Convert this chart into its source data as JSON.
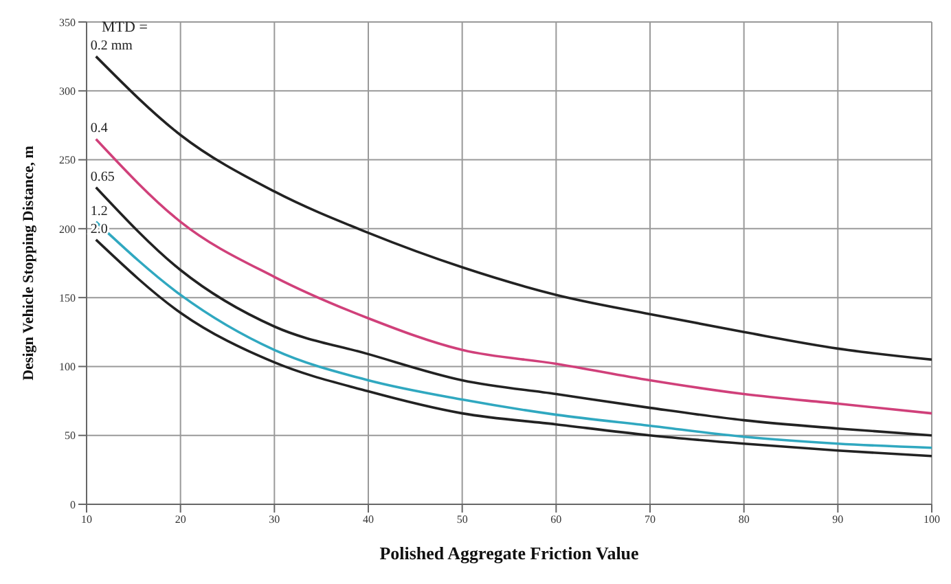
{
  "chart_data": {
    "type": "line",
    "xlabel": "Polished Aggregate Friction Value",
    "ylabel": "Design Vehicle Stopping Distance, m",
    "x": [
      11,
      20,
      30,
      40,
      50,
      60,
      70,
      80,
      90,
      100
    ],
    "series": [
      {
        "name": "0.2 mm",
        "color": "#222222",
        "values": [
          325,
          268,
          227,
          197,
          172,
          152,
          138,
          125,
          113,
          105
        ]
      },
      {
        "name": "0.4",
        "color": "#d0407a",
        "values": [
          265,
          205,
          165,
          135,
          112,
          102,
          90,
          80,
          73,
          66
        ]
      },
      {
        "name": "0.65",
        "color": "#222222",
        "values": [
          230,
          170,
          129,
          109,
          90,
          80,
          70,
          61,
          55,
          50
        ]
      },
      {
        "name": "1.2",
        "color": "#30a8c0",
        "values": [
          205,
          152,
          112,
          90,
          76,
          65,
          57,
          49,
          44,
          41
        ]
      },
      {
        "name": "2.0",
        "color": "#222222",
        "values": [
          192,
          139,
          103,
          82,
          66,
          58,
          50,
          44,
          39,
          35
        ]
      }
    ],
    "annotations": [
      "MTD ="
    ],
    "xlim": [
      10,
      100
    ],
    "xticks": [
      10,
      20,
      30,
      40,
      50,
      60,
      70,
      80,
      90,
      100
    ],
    "ylim": [
      0,
      350
    ],
    "yticks": [
      0,
      50,
      100,
      150,
      200,
      250,
      300,
      350
    ],
    "grid": true,
    "marker": "none",
    "line_style": "solid"
  }
}
